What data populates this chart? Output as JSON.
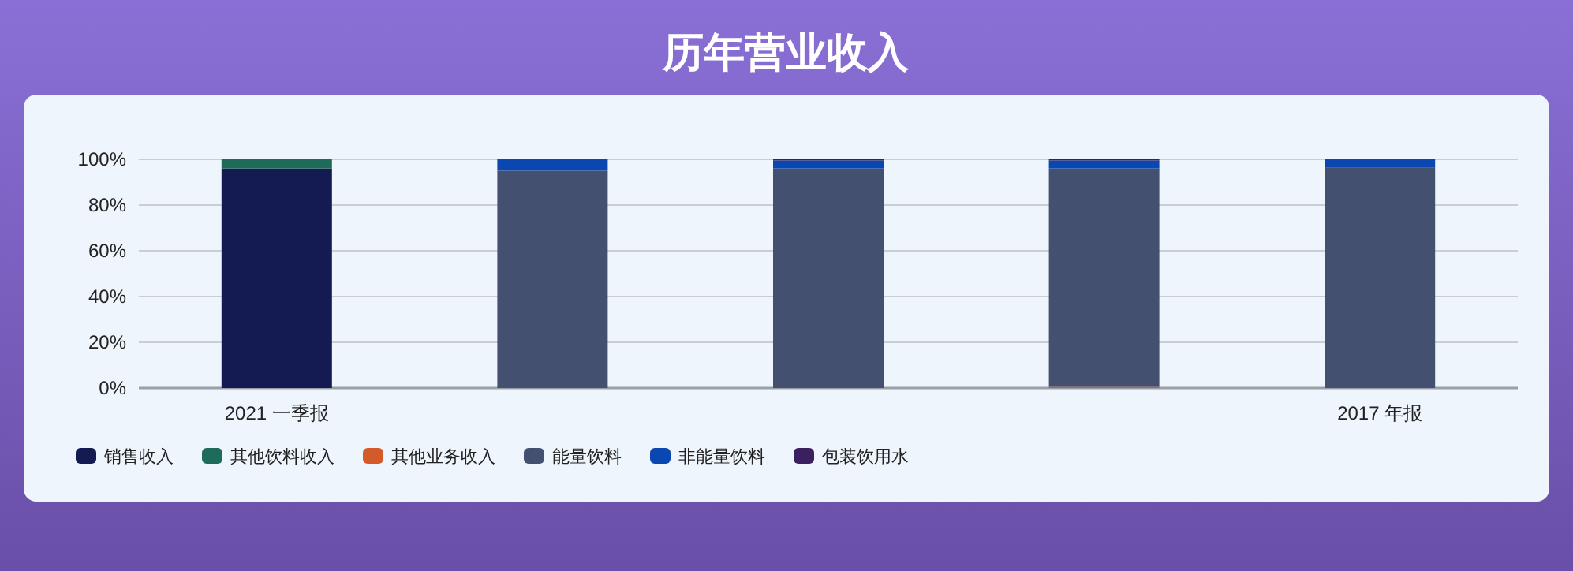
{
  "chart_data": {
    "type": "bar",
    "title": "历年营业收入",
    "stacked": true,
    "categories": [
      "2021 一季报",
      null,
      null,
      null,
      "2017 年报"
    ],
    "series": [
      {
        "name": "销售收入",
        "color": "#141a52",
        "values": [
          96,
          0,
          0,
          0,
          0
        ]
      },
      {
        "name": "其他饮料收入",
        "color": "#1e6b5a",
        "values": [
          4,
          0,
          0,
          0,
          0
        ]
      },
      {
        "name": "其他业务收入",
        "color": "#d45a2a",
        "values": [
          0,
          0,
          0,
          0.5,
          0
        ]
      },
      {
        "name": "能量饮料",
        "color": "#44506f",
        "values": [
          0,
          95,
          96,
          95.5,
          96.5
        ]
      },
      {
        "name": "非能量饮料",
        "color": "#0b47b0",
        "values": [
          0,
          5,
          3.5,
          3.5,
          3.5
        ]
      },
      {
        "name": "包装饮用水",
        "color": "#3b1f5e",
        "values": [
          0,
          0,
          0.5,
          0.5,
          0
        ]
      }
    ],
    "ylim": [
      0,
      100
    ],
    "yticks": [
      {
        "value": 0,
        "label": "0%"
      },
      {
        "value": 20,
        "label": "20%"
      },
      {
        "value": 40,
        "label": "40%"
      },
      {
        "value": 60,
        "label": "60%"
      },
      {
        "value": 80,
        "label": "80%"
      },
      {
        "value": 100,
        "label": "100%"
      }
    ],
    "grid": "y",
    "legend": "bottom"
  }
}
